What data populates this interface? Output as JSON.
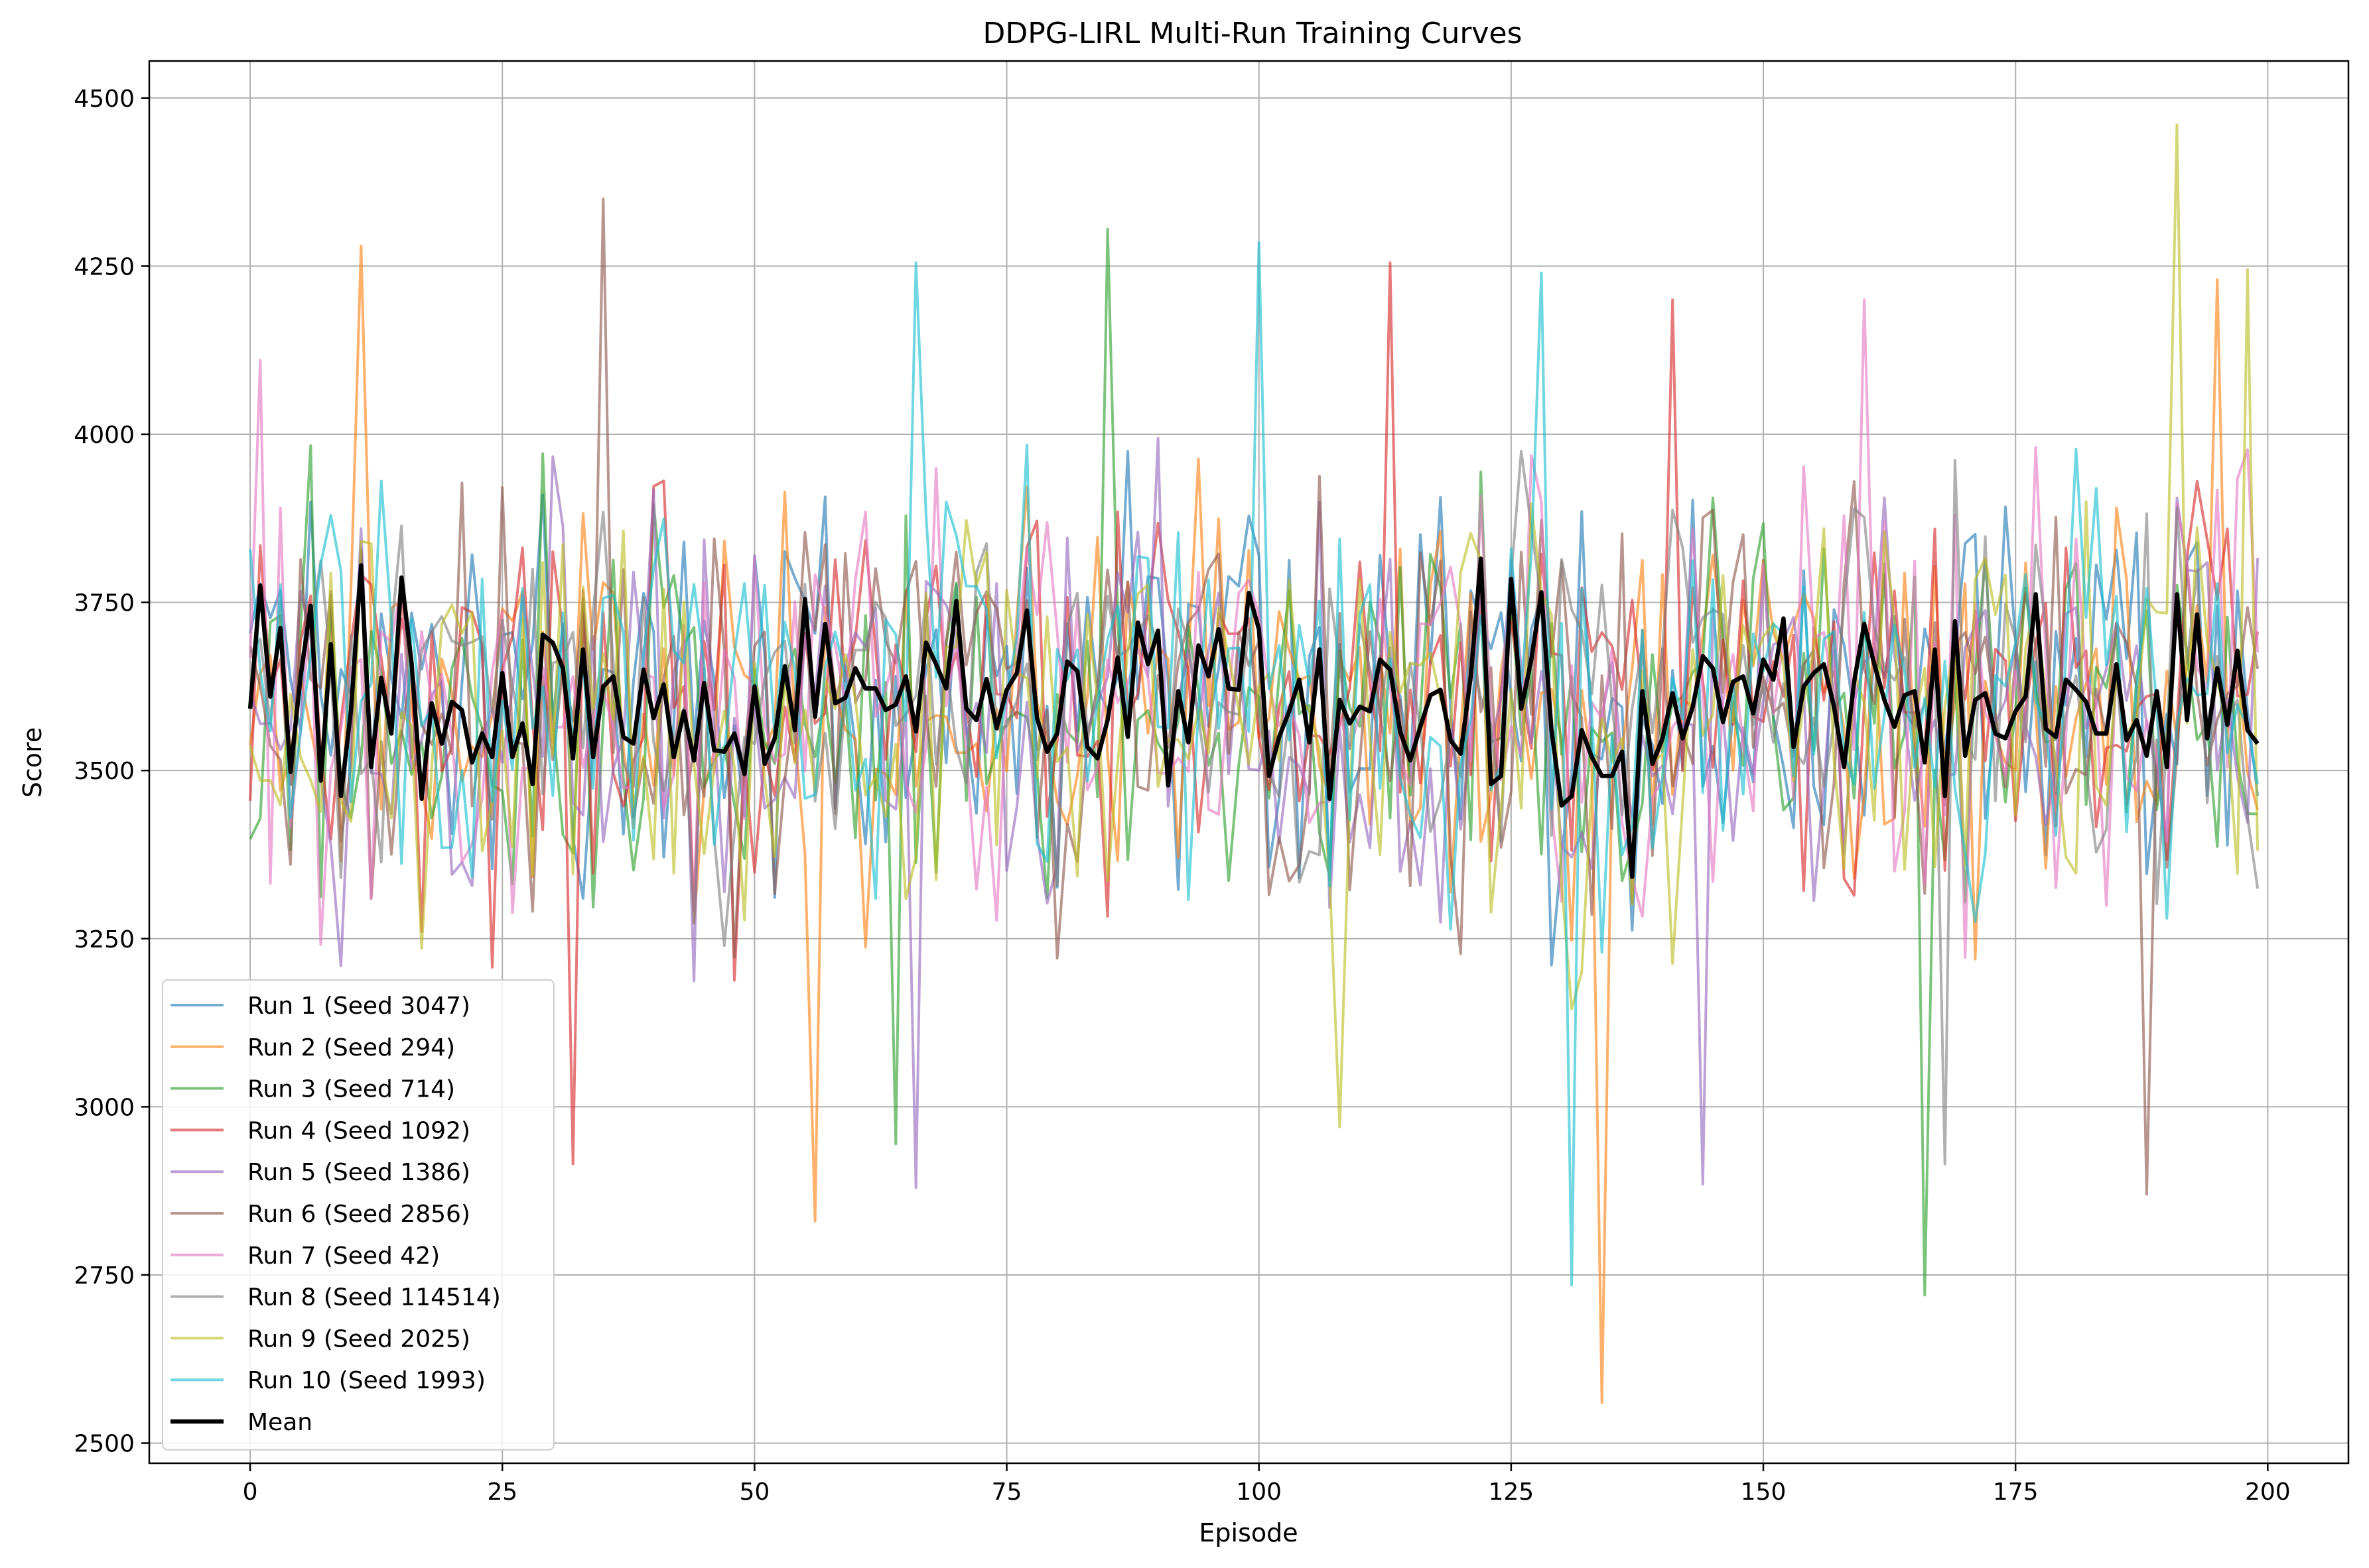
{
  "chart_data": {
    "type": "line",
    "title": "DDPG-LIRL Multi-Run Training Curves",
    "xlabel": "Episode",
    "ylabel": "Score",
    "xlim": [
      -10,
      208
    ],
    "ylim": [
      2470,
      4555
    ],
    "xticks": [
      0,
      25,
      50,
      75,
      100,
      125,
      150,
      175,
      200
    ],
    "yticks": [
      2500,
      2750,
      3000,
      3250,
      3500,
      3750,
      4000,
      4250,
      4500
    ],
    "xtick_labels": [
      "0",
      "25",
      "50",
      "75",
      "100",
      "125",
      "150",
      "175",
      "200"
    ],
    "ytick_labels": [
      "2500",
      "2750",
      "3000",
      "3250",
      "3500",
      "3750",
      "4000",
      "4250",
      "4500"
    ],
    "grid": true,
    "legend_position": "lower-left",
    "episodes": {
      "start": 0,
      "end": 199,
      "step": 1
    },
    "series": [
      {
        "name": "Run 1 (Seed 3047)",
        "color": "#1f77b4",
        "seed": 3047,
        "base": 3600,
        "spread": 260,
        "spikes": []
      },
      {
        "name": "Run 2 (Seed 294)",
        "color": "#ff7f0e",
        "seed": 294,
        "base": 3590,
        "spread": 260,
        "spikes": [
          [
            11,
            4280
          ],
          [
            56,
            2830
          ],
          [
            134,
            2560
          ],
          [
            195,
            4230
          ]
        ]
      },
      {
        "name": "Run 3 (Seed 714)",
        "color": "#2ca02c",
        "seed": 714,
        "base": 3600,
        "spread": 260,
        "spikes": [
          [
            85,
            4305
          ],
          [
            166,
            2720
          ],
          [
            64,
            2945
          ]
        ]
      },
      {
        "name": "Run 4 (Seed 1092)",
        "color": "#d62728",
        "seed": 1092,
        "base": 3600,
        "spread": 260,
        "spikes": [
          [
            113,
            4255
          ],
          [
            32,
            2915
          ],
          [
            141,
            4200
          ]
        ]
      },
      {
        "name": "Run 5 (Seed 1386)",
        "color": "#9467bd",
        "seed": 1386,
        "base": 3600,
        "spread": 260,
        "spikes": [
          [
            66,
            2880
          ],
          [
            144,
            2885
          ]
        ]
      },
      {
        "name": "Run 6 (Seed 2856)",
        "color": "#8c564b",
        "seed": 2856,
        "base": 3600,
        "spread": 260,
        "spikes": [
          [
            35,
            4350
          ],
          [
            188,
            2870
          ]
        ]
      },
      {
        "name": "Run 7 (Seed 42)",
        "color": "#e377c2",
        "seed": 42,
        "base": 3600,
        "spread": 260,
        "spikes": [
          [
            1,
            4110
          ],
          [
            160,
            4200
          ]
        ]
      },
      {
        "name": "Run 8 (Seed 114514)",
        "color": "#7f7f7f",
        "seed": 114514,
        "base": 3600,
        "spread": 260,
        "spikes": [
          [
            168,
            2915
          ]
        ]
      },
      {
        "name": "Run 9 (Seed 2025)",
        "color": "#bcbd22",
        "seed": 2025,
        "base": 3600,
        "spread": 260,
        "spikes": [
          [
            191,
            4460
          ],
          [
            198,
            4245
          ],
          [
            108,
            2970
          ]
        ]
      },
      {
        "name": "Run 10 (Seed 1993)",
        "color": "#17becf",
        "seed": 1993,
        "base": 3600,
        "spread": 260,
        "spikes": [
          [
            66,
            4255
          ],
          [
            100,
            4285
          ],
          [
            128,
            4240
          ],
          [
            131,
            2735
          ]
        ]
      }
    ],
    "mean": {
      "name": "Mean",
      "color": "#000000",
      "values": [
        3592,
        3775,
        3610,
        3712,
        3498,
        3640,
        3745,
        3485,
        3688,
        3462,
        3590,
        3805,
        3505,
        3638,
        3555,
        3787,
        3660,
        3458,
        3600,
        3540,
        3602,
        3590,
        3512,
        3555,
        3520,
        3645,
        3520,
        3570,
        3480,
        3702,
        3690,
        3652,
        3518,
        3680,
        3520,
        3625,
        3640,
        3550,
        3540,
        3650,
        3578,
        3628,
        3520,
        3588,
        3515,
        3630,
        3530,
        3528,
        3555,
        3495,
        3625,
        3510,
        3548,
        3655,
        3560,
        3755,
        3580,
        3718,
        3600,
        3608,
        3652,
        3622,
        3622,
        3590,
        3598,
        3640,
        3558,
        3690,
        3658,
        3622,
        3752,
        3592,
        3575,
        3636,
        3563,
        3620,
        3645,
        3738,
        3578,
        3528,
        3555,
        3662,
        3648,
        3535,
        3518,
        3575,
        3668,
        3550,
        3720,
        3658,
        3708,
        3478,
        3618,
        3542,
        3686,
        3640,
        3710,
        3622,
        3620,
        3764,
        3710,
        3492,
        3550,
        3588,
        3635,
        3542,
        3680,
        3458,
        3605,
        3570,
        3595,
        3588,
        3665,
        3650,
        3558,
        3515,
        3565,
        3612,
        3620,
        3545,
        3525,
        3640,
        3815,
        3480,
        3492,
        3785,
        3592,
        3665,
        3765,
        3560,
        3448,
        3462,
        3560,
        3520,
        3492,
        3492,
        3528,
        3342,
        3618,
        3510,
        3548,
        3615,
        3548,
        3595,
        3670,
        3652,
        3572,
        3632,
        3640,
        3585,
        3665,
        3635,
        3726,
        3535,
        3625,
        3645,
        3658,
        3595,
        3505,
        3632,
        3718,
        3658,
        3605,
        3565,
        3612,
        3618,
        3512,
        3680,
        3462,
        3722,
        3522,
        3605,
        3615,
        3555,
        3548,
        3588,
        3610,
        3762,
        3562,
        3550,
        3635,
        3620,
        3602,
        3555,
        3555,
        3658,
        3545,
        3575,
        3522,
        3618,
        3505,
        3762,
        3575,
        3732,
        3548,
        3652,
        3568,
        3678,
        3560,
        3540
      ]
    }
  }
}
